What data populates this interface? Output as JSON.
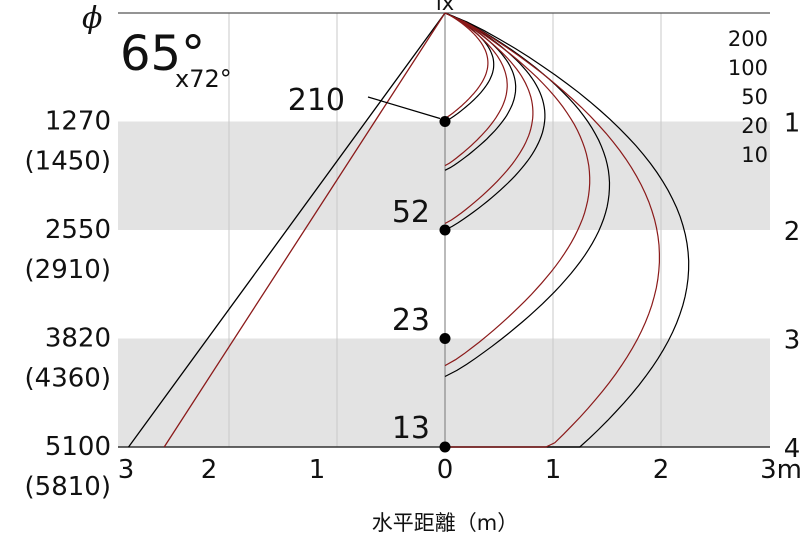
{
  "chart_data": {
    "type": "line",
    "phi_label": "ϕ",
    "beam_angle": "65°",
    "field_angle": "x72°",
    "lx_label": "lx",
    "xlabel": "水平距離（m）",
    "x_ticks": [
      "3",
      "2",
      "1",
      "0",
      "1",
      "2",
      "3m"
    ],
    "xlim": [
      -3,
      3
    ],
    "ylim": [
      0,
      4
    ],
    "distance_ticks": [
      {
        "distance": 1,
        "label": "1"
      },
      {
        "distance": 2,
        "label": "2"
      },
      {
        "distance": 3,
        "label": "3"
      },
      {
        "distance": 4,
        "label": "4"
      }
    ],
    "diameter_labels": [
      {
        "distance": 1,
        "value": "1270",
        "alt": "(1450)"
      },
      {
        "distance": 2,
        "value": "2550",
        "alt": "(2910)"
      },
      {
        "distance": 3,
        "value": "3820",
        "alt": "(4360)"
      },
      {
        "distance": 4,
        "value": "5100",
        "alt": "(5810)"
      }
    ],
    "center_illuminance": [
      {
        "distance": 1,
        "label": "210"
      },
      {
        "distance": 2,
        "label": "52"
      },
      {
        "distance": 3,
        "label": "23"
      },
      {
        "distance": 4,
        "label": "13"
      }
    ],
    "iso_lux_legend": [
      "200",
      "100",
      "50",
      "20",
      "10"
    ],
    "iso_lux_curves": [
      {
        "lux": "200",
        "reach": 1.0,
        "max_width": 0.4
      },
      {
        "lux": "100",
        "reach": 1.45,
        "max_width": 0.58
      },
      {
        "lux": "50",
        "reach": 2.0,
        "max_width": 0.82
      },
      {
        "lux": "20",
        "reach": 3.35,
        "max_width": 1.35
      },
      {
        "lux": "10",
        "reach": 4.9,
        "max_width": 2.0
      }
    ],
    "series": [
      {
        "color": "#000000",
        "bound_at_4m": -2.93
      },
      {
        "color": "#8b1a1a",
        "bound_at_4m": -2.6
      }
    ],
    "colors": {
      "band": "#e3e3e3",
      "grid": "#c8c8c8",
      "red": "#8b1a1a",
      "black": "#000000"
    }
  }
}
